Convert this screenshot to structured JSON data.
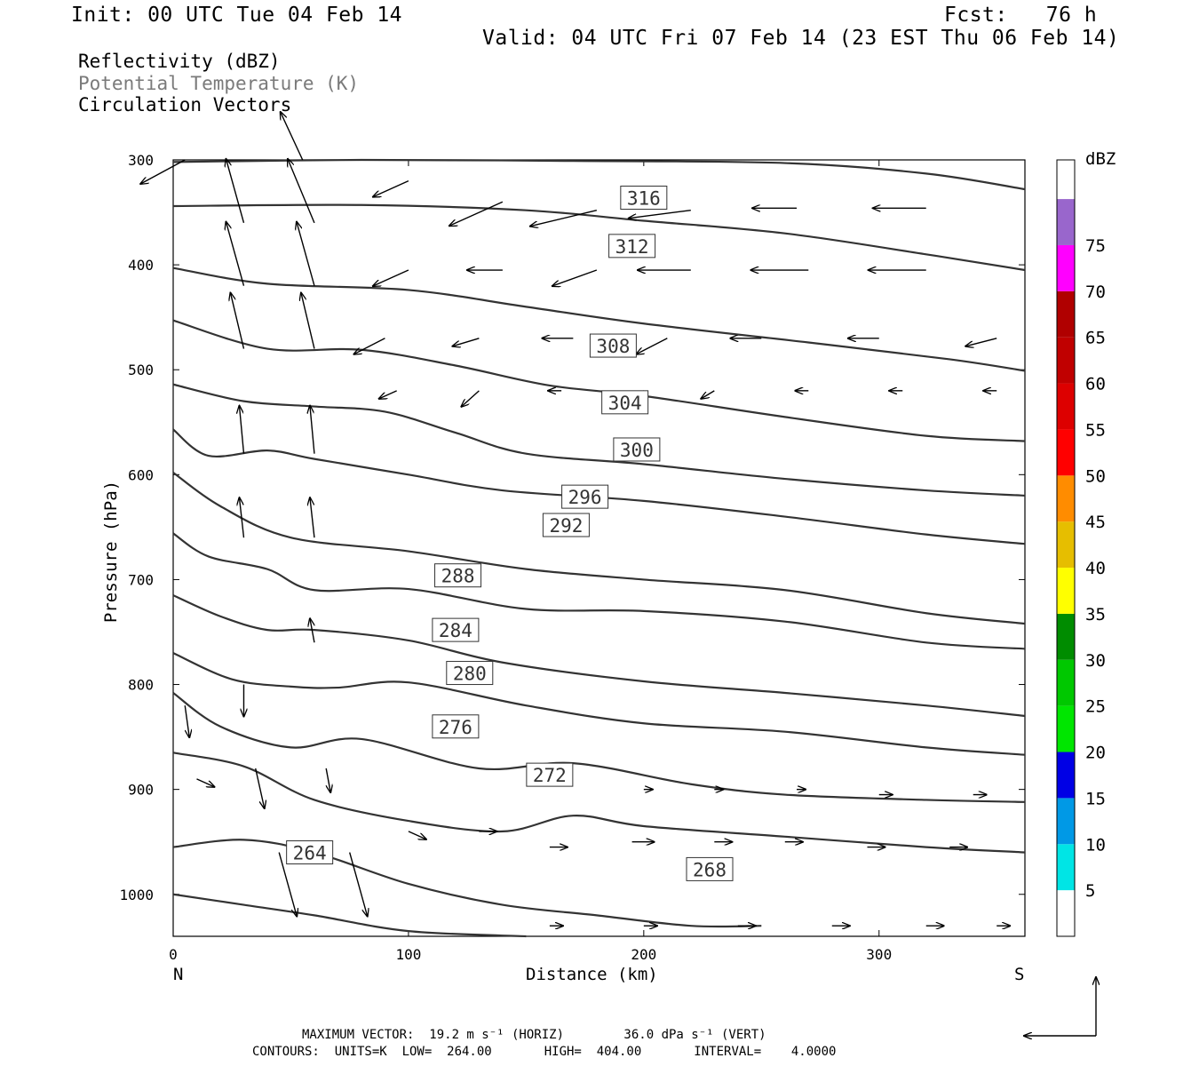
{
  "header": {
    "init": "Init: 00 UTC Tue 04 Feb 14",
    "fcst": "Fcst:   76 h",
    "valid": "Valid: 04 UTC Fri 07 Feb 14 (23 EST Thu 06 Feb 14)"
  },
  "legend": {
    "line1": "Reflectivity (dBZ)",
    "line2": "Potential Temperature (K)",
    "line3": "Circulation Vectors",
    "line2_color": "#7a7a7a"
  },
  "footer": {
    "line1": "MAXIMUM VECTOR:  19.2 m s⁻¹ (HORIZ)        36.0 dPa s⁻¹ (VERT)",
    "line2": "CONTOURS:  UNITS=K  LOW=  264.00       HIGH=  404.00       INTERVAL=    4.0000"
  },
  "colorbar": {
    "title": "dBZ",
    "labels": [
      "5",
      "10",
      "15",
      "20",
      "25",
      "30",
      "35",
      "40",
      "45",
      "50",
      "55",
      "60",
      "65",
      "70",
      "75"
    ],
    "colors": [
      "#00e5e5",
      "#0099e6",
      "#0000e5",
      "#00e600",
      "#00c800",
      "#008c00",
      "#ffff00",
      "#e6be00",
      "#ff8c00",
      "#ff0000",
      "#dd0000",
      "#c00000",
      "#b00000",
      "#ff00ff",
      "#9966cc"
    ]
  },
  "chart_data": {
    "type": "cross-section",
    "xlabel": "Distance (km)",
    "ylabel": "Pressure (hPa)",
    "x_left_label": "N",
    "x_right_label": "S",
    "xlim": [
      0,
      362
    ],
    "ylim": [
      1040,
      300
    ],
    "xticks": [
      0,
      100,
      200,
      300
    ],
    "yticks": [
      300,
      400,
      500,
      600,
      700,
      800,
      900,
      1000
    ],
    "contour_color": "#333333",
    "contours": [
      {
        "theta": 316,
        "p": [
          [
            0,
            302
          ],
          [
            80,
            300
          ],
          [
            170,
            301
          ],
          [
            260,
            303
          ],
          [
            320,
            313
          ],
          [
            362,
            328
          ]
        ],
        "label_at": [
          200,
          336
        ]
      },
      {
        "theta": 312,
        "p": [
          [
            0,
            344
          ],
          [
            80,
            343
          ],
          [
            150,
            348
          ],
          [
            200,
            358
          ],
          [
            260,
            370
          ],
          [
            320,
            390
          ],
          [
            362,
            405
          ]
        ],
        "label_at": [
          195,
          382
        ]
      },
      {
        "theta": 308,
        "p": [
          [
            0,
            403
          ],
          [
            40,
            418
          ],
          [
            100,
            424
          ],
          [
            150,
            440
          ],
          [
            200,
            456
          ],
          [
            270,
            474
          ],
          [
            330,
            490
          ],
          [
            362,
            501
          ]
        ],
        "label_at": [
          187,
          477
        ]
      },
      {
        "theta": 304,
        "p": [
          [
            0,
            453
          ],
          [
            40,
            480
          ],
          [
            80,
            481
          ],
          [
            120,
            496
          ],
          [
            160,
            515
          ],
          [
            200,
            525
          ],
          [
            260,
            545
          ],
          [
            320,
            563
          ],
          [
            362,
            568
          ]
        ],
        "label_at": [
          192,
          531
        ]
      },
      {
        "theta": 300,
        "p": [
          [
            0,
            514
          ],
          [
            30,
            530
          ],
          [
            60,
            535
          ],
          [
            90,
            540
          ],
          [
            120,
            560
          ],
          [
            150,
            580
          ],
          [
            200,
            590
          ],
          [
            260,
            604
          ],
          [
            320,
            615
          ],
          [
            362,
            620
          ]
        ],
        "label_at": [
          197,
          576
        ]
      },
      {
        "theta": 296,
        "p": [
          [
            0,
            557
          ],
          [
            15,
            582
          ],
          [
            40,
            577
          ],
          [
            60,
            585
          ],
          [
            100,
            600
          ],
          [
            140,
            615
          ],
          [
            200,
            625
          ],
          [
            260,
            640
          ],
          [
            320,
            657
          ],
          [
            362,
            666
          ]
        ],
        "label_at": [
          175,
          621
        ]
      },
      {
        "theta": 292,
        "p": [
          [
            0,
            598
          ],
          [
            20,
            630
          ],
          [
            50,
            660
          ],
          [
            100,
            673
          ],
          [
            150,
            690
          ],
          [
            200,
            700
          ],
          [
            260,
            710
          ],
          [
            320,
            732
          ],
          [
            362,
            742
          ]
        ],
        "label_at": [
          167,
          648
        ]
      },
      {
        "theta": 288,
        "p": [
          [
            0,
            656
          ],
          [
            15,
            678
          ],
          [
            40,
            690
          ],
          [
            60,
            710
          ],
          [
            100,
            709
          ],
          [
            150,
            728
          ],
          [
            200,
            730
          ],
          [
            260,
            740
          ],
          [
            320,
            760
          ],
          [
            362,
            766
          ]
        ],
        "label_at": [
          121,
          696
        ]
      },
      {
        "theta": 284,
        "p": [
          [
            0,
            715
          ],
          [
            20,
            735
          ],
          [
            40,
            748
          ],
          [
            60,
            748
          ],
          [
            100,
            758
          ],
          [
            140,
            779
          ],
          [
            200,
            797
          ],
          [
            260,
            808
          ],
          [
            320,
            820
          ],
          [
            362,
            830
          ]
        ],
        "label_at": [
          120,
          748
        ]
      },
      {
        "theta": 280,
        "p": [
          [
            0,
            770
          ],
          [
            25,
            795
          ],
          [
            50,
            802
          ],
          [
            70,
            803
          ],
          [
            100,
            798
          ],
          [
            150,
            820
          ],
          [
            200,
            837
          ],
          [
            260,
            845
          ],
          [
            320,
            860
          ],
          [
            362,
            867
          ]
        ],
        "label_at": [
          126,
          789
        ]
      },
      {
        "theta": 276,
        "p": [
          [
            0,
            808
          ],
          [
            20,
            840
          ],
          [
            50,
            860
          ],
          [
            80,
            852
          ],
          [
            130,
            880
          ],
          [
            170,
            875
          ],
          [
            220,
            895
          ],
          [
            260,
            905
          ],
          [
            320,
            910
          ],
          [
            362,
            912
          ]
        ],
        "label_at": [
          120,
          840
        ]
      },
      {
        "theta": 272,
        "p": [
          [
            0,
            865
          ],
          [
            30,
            878
          ],
          [
            60,
            910
          ],
          [
            100,
            930
          ],
          [
            140,
            940
          ],
          [
            170,
            925
          ],
          [
            200,
            935
          ],
          [
            260,
            945
          ],
          [
            320,
            955
          ],
          [
            362,
            960
          ]
        ],
        "label_at": [
          160,
          886
        ]
      },
      {
        "theta": 268,
        "p": [
          [
            0,
            955
          ],
          [
            30,
            948
          ],
          [
            60,
            960
          ],
          [
            100,
            990
          ],
          [
            140,
            1010
          ],
          [
            180,
            1020
          ],
          [
            220,
            1030
          ],
          [
            250,
            1030
          ]
        ],
        "label_at": [
          228,
          976
        ]
      },
      {
        "theta": 264,
        "p": [
          [
            0,
            1000
          ],
          [
            30,
            1010
          ],
          [
            60,
            1020
          ],
          [
            100,
            1035
          ],
          [
            150,
            1040
          ]
        ],
        "label_at": [
          58,
          960
        ]
      }
    ],
    "vectors": [
      {
        "x": 5,
        "p": 300,
        "u": -10,
        "v": -3
      },
      {
        "x": 55,
        "p": 300,
        "u": -5,
        "v": 6
      },
      {
        "x": 100,
        "p": 320,
        "u": -8,
        "v": -2
      },
      {
        "x": 140,
        "p": 340,
        "u": -12,
        "v": -3
      },
      {
        "x": 180,
        "p": 348,
        "u": -15,
        "v": -2
      },
      {
        "x": 220,
        "p": 348,
        "u": -14,
        "v": -1
      },
      {
        "x": 265,
        "p": 346,
        "u": -10,
        "v": 0
      },
      {
        "x": 320,
        "p": 346,
        "u": -12,
        "v": 0
      },
      {
        "x": 30,
        "p": 360,
        "u": -4,
        "v": 8
      },
      {
        "x": 60,
        "p": 360,
        "u": -6,
        "v": 8
      },
      {
        "x": 100,
        "p": 405,
        "u": -8,
        "v": -2
      },
      {
        "x": 140,
        "p": 405,
        "u": -8,
        "v": 0
      },
      {
        "x": 180,
        "p": 405,
        "u": -10,
        "v": -2
      },
      {
        "x": 220,
        "p": 405,
        "u": -12,
        "v": 0
      },
      {
        "x": 270,
        "p": 405,
        "u": -13,
        "v": 0
      },
      {
        "x": 320,
        "p": 405,
        "u": -13,
        "v": 0
      },
      {
        "x": 30,
        "p": 420,
        "u": -4,
        "v": 8
      },
      {
        "x": 60,
        "p": 420,
        "u": -4,
        "v": 8
      },
      {
        "x": 90,
        "p": 470,
        "u": -7,
        "v": -2
      },
      {
        "x": 130,
        "p": 470,
        "u": -6,
        "v": -1
      },
      {
        "x": 170,
        "p": 470,
        "u": -7,
        "v": 0
      },
      {
        "x": 210,
        "p": 470,
        "u": -7,
        "v": -2
      },
      {
        "x": 250,
        "p": 470,
        "u": -7,
        "v": 0
      },
      {
        "x": 300,
        "p": 470,
        "u": -7,
        "v": 0
      },
      {
        "x": 350,
        "p": 470,
        "u": -7,
        "v": -1
      },
      {
        "x": 30,
        "p": 480,
        "u": -3,
        "v": 7
      },
      {
        "x": 60,
        "p": 480,
        "u": -3,
        "v": 7
      },
      {
        "x": 95,
        "p": 520,
        "u": -4,
        "v": -1
      },
      {
        "x": 130,
        "p": 520,
        "u": -4,
        "v": -2
      },
      {
        "x": 165,
        "p": 520,
        "u": -3,
        "v": 0
      },
      {
        "x": 200,
        "p": 520,
        "u": -3,
        "v": -1
      },
      {
        "x": 230,
        "p": 520,
        "u": -3,
        "v": -1
      },
      {
        "x": 270,
        "p": 520,
        "u": -3,
        "v": 0
      },
      {
        "x": 310,
        "p": 520,
        "u": -3,
        "v": 0
      },
      {
        "x": 350,
        "p": 520,
        "u": -3,
        "v": 0
      },
      {
        "x": 30,
        "p": 580,
        "u": -1,
        "v": 6
      },
      {
        "x": 60,
        "p": 580,
        "u": -1,
        "v": 6
      },
      {
        "x": 30,
        "p": 660,
        "u": -1,
        "v": 5
      },
      {
        "x": 60,
        "p": 660,
        "u": -1,
        "v": 5
      },
      {
        "x": 60,
        "p": 760,
        "u": -1,
        "v": 3
      },
      {
        "x": 30,
        "p": 800,
        "u": 0,
        "v": -4
      },
      {
        "x": 5,
        "p": 820,
        "u": 1,
        "v": -4
      },
      {
        "x": 35,
        "p": 880,
        "u": 2,
        "v": -5
      },
      {
        "x": 65,
        "p": 880,
        "u": 1,
        "v": -3
      },
      {
        "x": 45,
        "p": 960,
        "u": 4,
        "v": -8
      },
      {
        "x": 75,
        "p": 960,
        "u": 4,
        "v": -8
      },
      {
        "x": 10,
        "p": 890,
        "u": 4,
        "v": -1
      },
      {
        "x": 100,
        "p": 940,
        "u": 4,
        "v": -1
      },
      {
        "x": 130,
        "p": 940,
        "u": 4,
        "v": 0
      },
      {
        "x": 160,
        "p": 955,
        "u": 4,
        "v": 0
      },
      {
        "x": 195,
        "p": 950,
        "u": 5,
        "v": 0
      },
      {
        "x": 230,
        "p": 950,
        "u": 4,
        "v": 0
      },
      {
        "x": 260,
        "p": 950,
        "u": 4,
        "v": 0
      },
      {
        "x": 295,
        "p": 955,
        "u": 4,
        "v": 0
      },
      {
        "x": 330,
        "p": 955,
        "u": 4,
        "v": 0
      },
      {
        "x": 200,
        "p": 900,
        "u": 2,
        "v": 0
      },
      {
        "x": 230,
        "p": 900,
        "u": 2,
        "v": 0
      },
      {
        "x": 265,
        "p": 900,
        "u": 2,
        "v": 0
      },
      {
        "x": 300,
        "p": 905,
        "u": 3,
        "v": 0
      },
      {
        "x": 340,
        "p": 905,
        "u": 3,
        "v": 0
      },
      {
        "x": 160,
        "p": 1030,
        "u": 3,
        "v": 0
      },
      {
        "x": 200,
        "p": 1030,
        "u": 3,
        "v": 0
      },
      {
        "x": 240,
        "p": 1030,
        "u": 4,
        "v": 0
      },
      {
        "x": 280,
        "p": 1030,
        "u": 4,
        "v": 0
      },
      {
        "x": 320,
        "p": 1030,
        "u": 4,
        "v": 0
      },
      {
        "x": 350,
        "p": 1030,
        "u": 3,
        "v": 0
      }
    ]
  }
}
